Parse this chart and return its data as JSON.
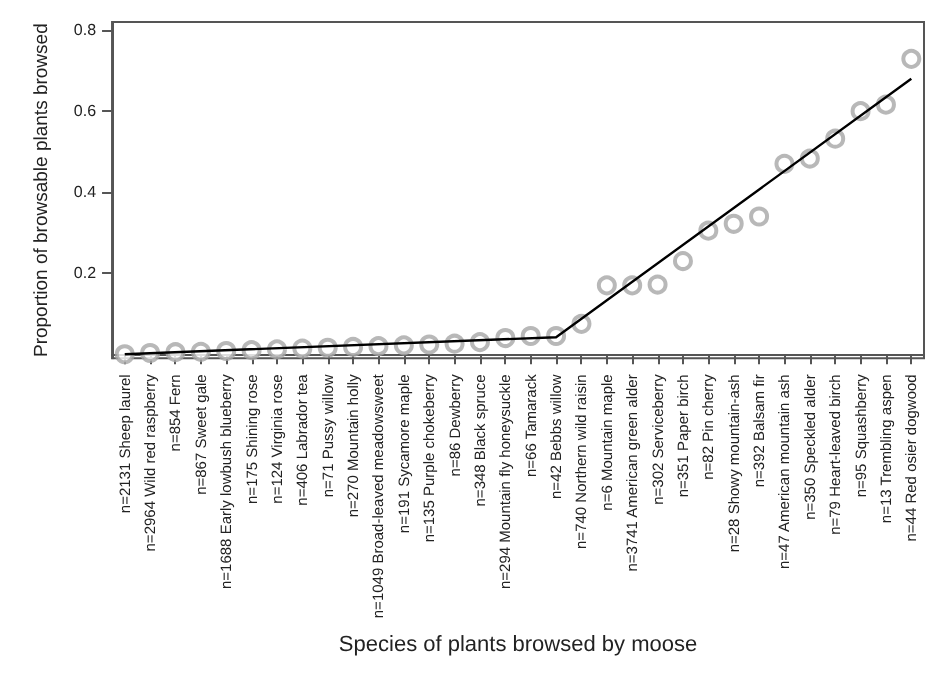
{
  "chart_data": {
    "type": "scatter",
    "xlabel": "Species of plants browsed by moose",
    "ylabel": "Proportion of browsable plants browsed",
    "categories": [
      "n=2131 Sheep laurel",
      "n=2964 Wild red raspberry",
      "n=854 Fern",
      "n=867 Sweet gale",
      "n=1688 Early lowbush blueberry",
      "n=175 Shining rose",
      "n=124 Virginia rose",
      "n=406 Labrador tea",
      "n=71 Pussy willow",
      "n=270 Mountain holly",
      "n=1049 Broad-leaved meadowsweet",
      "n=191 Sycamore maple",
      "n=135 Purple chokeberry",
      "n=86 Dewberry",
      "n=348 Black spruce",
      "n=294 Mountain fly honeysuckle",
      "n=66 Tamarack",
      "n=42 Bebbs willow",
      "n=740 Northern wild raisin",
      "n=6 Mountain maple",
      "n=3741 American green alder",
      "n=302 Serviceberry",
      "n=351 Paper birch",
      "n=82 Pin cherry",
      "n=28 Showy mountain-ash",
      "n=392 Balsam fir",
      "n=47 American mountain ash",
      "n=350 Speckled alder",
      "n=79 Heart-leaved birch",
      "n=95 Squashberry",
      "n=13 Trembling aspen",
      "n=44 Red osier dogwood"
    ],
    "series": [
      {
        "color": "#a6a6a6",
        "marker": "circle",
        "values": [
          0,
          0.003,
          0.005,
          0.006,
          0.008,
          0.01,
          0.012,
          0.014,
          0.016,
          0.018,
          0.02,
          0.022,
          0.024,
          0.026,
          0.03,
          0.04,
          0.045,
          0.045,
          0.075,
          0.17,
          0.17,
          0.172,
          0.23,
          0.305,
          0.322,
          0.34,
          0.47,
          0.483,
          0.532,
          0.6,
          0.616,
          0.729
        ]
      },
      {
        "type": "line",
        "color": "#000000",
        "marker": "none",
        "x": [
          "n=2131 Sheep laurel",
          "n=42 Bebbs willow",
          "n=44 Red osier dogwood"
        ],
        "values": [
          0,
          0.042,
          0.68
        ]
      }
    ],
    "ylim": [
      -0.01,
      0.82
    ],
    "yticks": [
      0.2,
      0.4,
      0.6,
      0.8
    ],
    "grid": false
  }
}
